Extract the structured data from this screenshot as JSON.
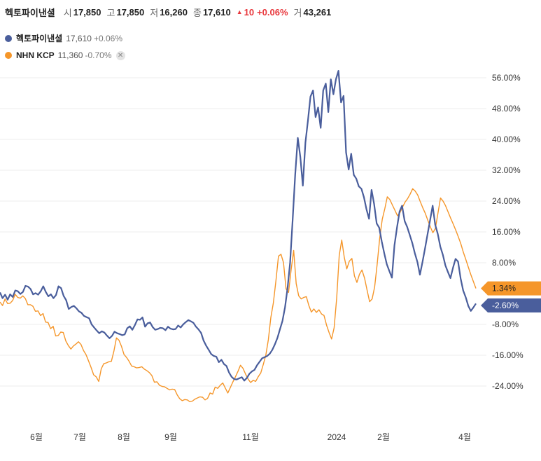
{
  "header": {
    "stock_name": "헥토파이낸셜",
    "open_label": "시",
    "open": "17,850",
    "high_label": "고",
    "high": "17,850",
    "low_label": "저",
    "low": "16,260",
    "close_label": "종",
    "close": "17,610",
    "change_icon": "up-triangle-icon",
    "change": "10",
    "change_pct": "+0.06%",
    "volume_label": "거",
    "volume": "43,261"
  },
  "legend": [
    {
      "name": "헥토파이낸셜",
      "value": "17,610",
      "change": "+0.06%",
      "color": "#4a5e9c"
    },
    {
      "name": "NHN KCP",
      "value": "11,360",
      "change": "-0.70%",
      "color": "#f5962a",
      "close_icon": "close-icon",
      "close_glyph": "✕"
    }
  ],
  "chart_data": {
    "type": "line",
    "y_unit": "%",
    "ylim": [
      -28,
      58
    ],
    "y_ticks": [
      56,
      48,
      40,
      32,
      24,
      16,
      8,
      -8,
      -16,
      -24
    ],
    "y_tick_labels": [
      "56.00%",
      "48.00%",
      "40.00%",
      "32.00%",
      "24.00%",
      "16.00%",
      "8.00%",
      "-8.00%",
      "-16.00%",
      "-24.00%"
    ],
    "x_ticks": [
      "6월",
      "7월",
      "8월",
      "9월",
      "11월",
      "2024",
      "2월",
      "4월"
    ],
    "grid": true,
    "legend": "top-left",
    "series": [
      {
        "name": "헥토파이낸셜",
        "color": "#4a5e9c",
        "last_label": "-2.60%",
        "values": [
          0.3,
          -1.2,
          -0.3,
          -1.6,
          -0.2,
          -0.9,
          0.8,
          0.6,
          -0.1,
          0.4,
          2.0,
          1.8,
          1.2,
          -0.2,
          0.1,
          -0.3,
          0.6,
          1.9,
          0.4,
          -0.7,
          -0.2,
          -1.2,
          -0.4,
          1.9,
          1.4,
          -0.6,
          -1.7,
          -4.0,
          -3.5,
          -3.2,
          -3.8,
          -4.6,
          -5.0,
          -5.8,
          -6.1,
          -6.4,
          -8.0,
          -8.8,
          -9.6,
          -10.3,
          -9.8,
          -10.1,
          -10.9,
          -11.6,
          -11.0,
          -9.9,
          -10.3,
          -10.5,
          -10.8,
          -10.6,
          -9.0,
          -8.5,
          -9.4,
          -8.2,
          -6.7,
          -6.8,
          -6.2,
          -8.6,
          -7.7,
          -7.5,
          -8.7,
          -9.4,
          -9.2,
          -8.9,
          -9.0,
          -9.5,
          -8.6,
          -9.1,
          -9.3,
          -9.2,
          -8.3,
          -8.8,
          -8.0,
          -7.4,
          -6.9,
          -7.2,
          -7.6,
          -8.6,
          -9.3,
          -10.2,
          -12.2,
          -13.5,
          -14.6,
          -15.7,
          -16.2,
          -16.4,
          -17.8,
          -17.2,
          -18.3,
          -18.8,
          -20.5,
          -21.6,
          -22.2,
          -22.3,
          -22.0,
          -21.7,
          -22.6,
          -21.9,
          -20.8,
          -20.2,
          -19.8,
          -18.6,
          -17.7,
          -16.8,
          -16.5,
          -16.2,
          -15.6,
          -14.6,
          -13.2,
          -11.5,
          -9.3,
          -7.1,
          -3.5,
          1.5,
          8.0,
          19.3,
          30.9,
          40.4,
          35.5,
          28.0,
          39.2,
          44.9,
          51.1,
          52.7,
          45.8,
          48.3,
          43.0,
          52.7,
          54.5,
          47.1,
          55.6,
          51.7,
          55.6,
          57.8,
          49.6,
          51.3,
          36.6,
          32.2,
          36.3,
          30.8,
          29.8,
          27.8,
          27.2,
          25.0,
          21.9,
          19.4,
          26.9,
          23.3,
          18.2,
          17.1,
          13.5,
          10.4,
          7.6,
          5.8,
          4.1,
          12.5,
          17.2,
          21.3,
          22.8,
          18.8,
          17.3,
          15.2,
          13.1,
          10.5,
          8.2,
          4.9,
          8.1,
          11.7,
          15.4,
          19.0,
          22.8,
          17.9,
          15.5,
          12.2,
          10.1,
          7.3,
          5.6,
          4.0,
          6.7,
          9.0,
          8.3,
          3.9,
          0.8,
          -1.0,
          -3.2,
          -4.5,
          -3.6,
          -2.6
        ]
      },
      {
        "name": "NHN KCP",
        "color": "#f5962a",
        "last_label": "1.34%",
        "values": [
          -2.2,
          -3.1,
          -1.4,
          -2.6,
          -2.5,
          -1.8,
          -0.2,
          -1.0,
          -1.2,
          -0.6,
          -1.3,
          -2.9,
          -2.9,
          -3.3,
          -4.6,
          -4.5,
          -5.7,
          -5.2,
          -7.4,
          -7.5,
          -9.1,
          -8.5,
          -11.0,
          -10.9,
          -10.0,
          -10.1,
          -12.3,
          -13.5,
          -14.4,
          -13.6,
          -13.1,
          -12.5,
          -13.2,
          -14.8,
          -15.9,
          -17.5,
          -19.2,
          -21.1,
          -21.6,
          -22.8,
          -19.5,
          -18.2,
          -18.0,
          -17.7,
          -17.6,
          -14.9,
          -11.5,
          -12.1,
          -13.7,
          -15.8,
          -16.6,
          -17.6,
          -18.8,
          -19.0,
          -19.3,
          -19.2,
          -19.0,
          -19.6,
          -20.0,
          -20.5,
          -21.3,
          -23.0,
          -22.9,
          -23.8,
          -24.1,
          -24.2,
          -24.6,
          -25.0,
          -24.8,
          -24.9,
          -26.3,
          -27.3,
          -27.8,
          -27.5,
          -27.6,
          -28.1,
          -27.9,
          -27.4,
          -27.1,
          -26.8,
          -26.9,
          -27.6,
          -27.2,
          -25.8,
          -26.1,
          -24.3,
          -24.6,
          -23.8,
          -23.2,
          -24.5,
          -25.8,
          -24.4,
          -22.9,
          -21.6,
          -20.2,
          -18.6,
          -19.4,
          -20.9,
          -22.2,
          -23.1,
          -22.5,
          -22.8,
          -21.6,
          -20.6,
          -18.4,
          -16.0,
          -12.0,
          -6.2,
          -2.4,
          3.4,
          9.7,
          10.2,
          8.0,
          1.2,
          0.3,
          6.2,
          11.2,
          2.6,
          -0.6,
          -1.4,
          -1.0,
          -0.8,
          -3.1,
          -4.8,
          -4.0,
          -4.9,
          -4.2,
          -5.3,
          -5.7,
          -8.2,
          -10.1,
          -11.8,
          -8.9,
          -1.1,
          9.9,
          13.9,
          9.4,
          6.4,
          8.4,
          9.1,
          4.6,
          2.9,
          5.0,
          6.1,
          4.0,
          0.9,
          -2.1,
          -1.4,
          1.7,
          7.6,
          14.5,
          19.3,
          22.0,
          25.1,
          24.4,
          23.0,
          21.6,
          20.2,
          21.0,
          22.4,
          23.7,
          24.6,
          25.8,
          27.2,
          26.6,
          25.6,
          23.9,
          22.3,
          20.8,
          19.0,
          17.3,
          15.8,
          16.9,
          20.8,
          24.8,
          24.0,
          22.8,
          21.2,
          19.6,
          18.1,
          16.5,
          14.8,
          13.0,
          10.8,
          8.9,
          6.9,
          4.9,
          3.1,
          1.34
        ]
      }
    ]
  }
}
